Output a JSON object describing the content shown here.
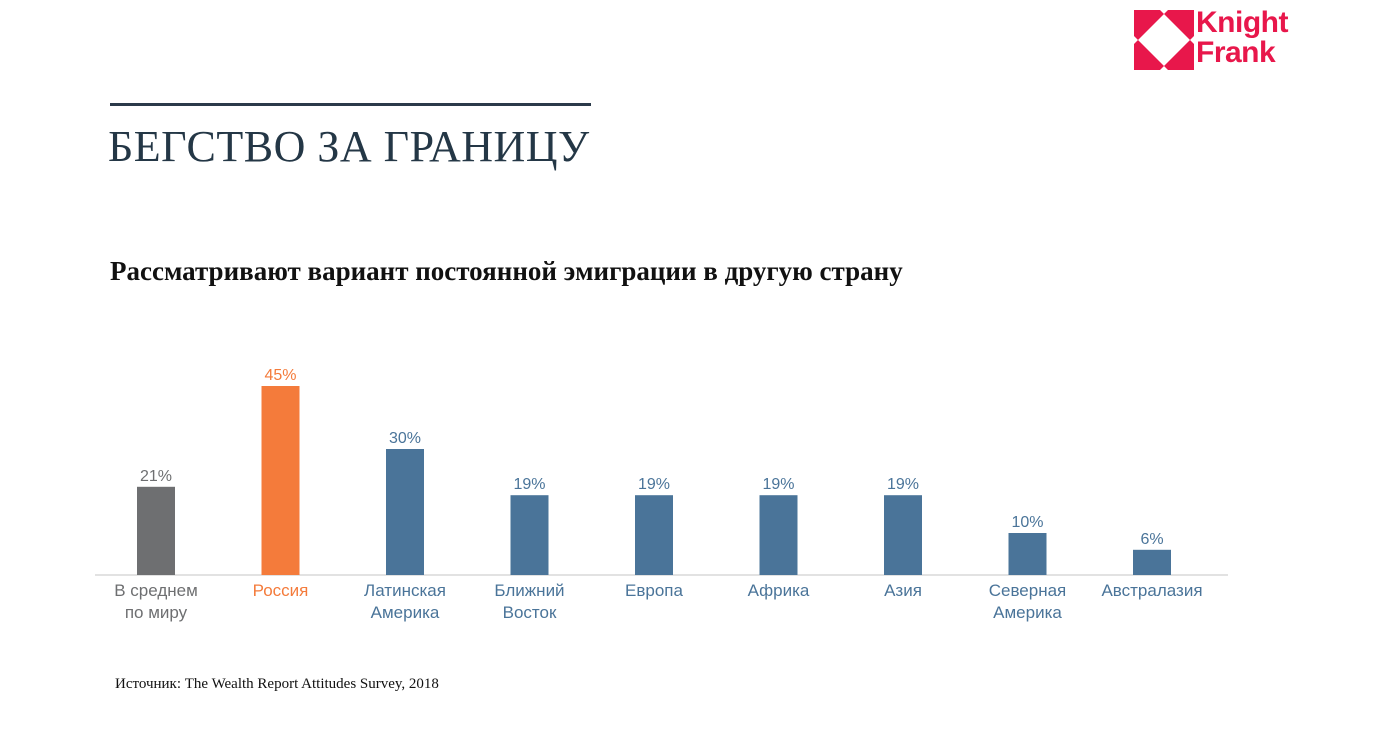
{
  "slide": {
    "title": "БЕГСТВО ЗА ГРАНИЦУ",
    "source": "Источник: The Wealth Report Attitudes Survey, 2018"
  },
  "logo": {
    "line1": "Knight",
    "line2": "Frank",
    "color": "#e8174b"
  },
  "chart_data": {
    "type": "bar",
    "title": "Рассматривают вариант постоянной эмиграции в другую страну",
    "categories": [
      [
        "В среднем",
        "по миру"
      ],
      [
        "Россия"
      ],
      [
        "Латинская",
        "Америка"
      ],
      [
        "Ближний",
        "Восток"
      ],
      [
        "Европа"
      ],
      [
        "Африка"
      ],
      [
        "Азия"
      ],
      [
        "Северная",
        "Америка"
      ],
      [
        "Австралазия"
      ]
    ],
    "values": [
      21,
      45,
      30,
      19,
      19,
      19,
      19,
      10,
      6
    ],
    "value_labels": [
      "21%",
      "45%",
      "30%",
      "19%",
      "19%",
      "19%",
      "19%",
      "10%",
      "6%"
    ],
    "unit": "%",
    "ylim": [
      0,
      45
    ],
    "grid": false,
    "colors": {
      "average": "#6e6f71",
      "highlight": "#f47b3b",
      "default": "#4a7499",
      "axis": "#d9d9d9"
    },
    "bar_colors": [
      "average",
      "highlight",
      "default",
      "default",
      "default",
      "default",
      "default",
      "default",
      "default"
    ]
  }
}
